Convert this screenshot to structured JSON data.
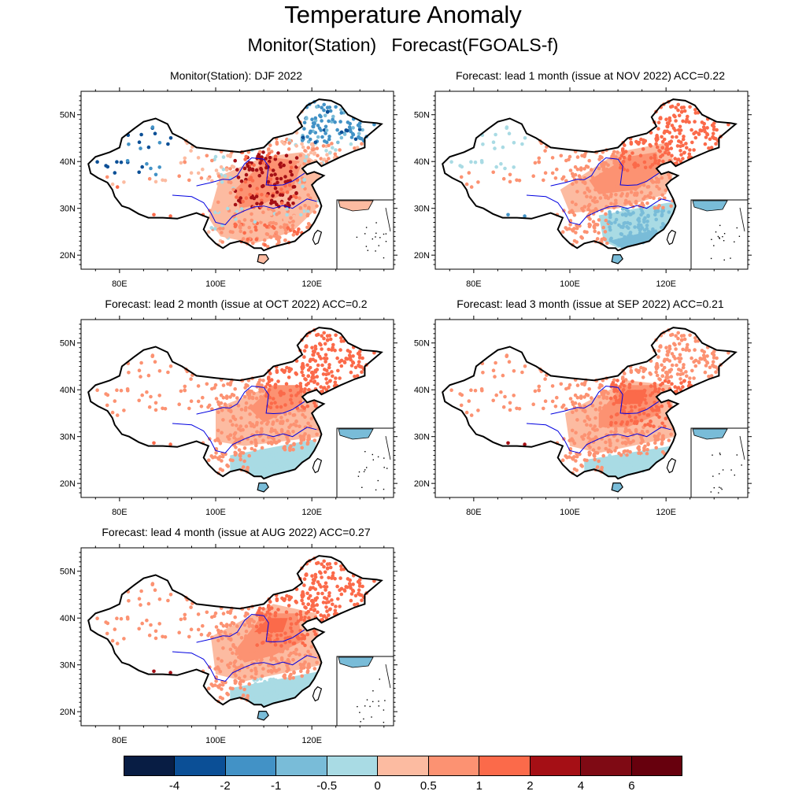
{
  "header": {
    "title": "Temperature Anomaly",
    "subtitle": "Monitor(Station)   Forecast(FGOALS-f)"
  },
  "axes": {
    "lat_labels": [
      "50N",
      "40N",
      "30N",
      "20N"
    ],
    "lon_labels": [
      "80E",
      "100E",
      "120E"
    ],
    "lat_range": [
      17,
      55
    ],
    "lon_range": [
      72,
      137
    ]
  },
  "panels": [
    {
      "title": "Monitor(Station): DJF 2022",
      "pattern": "monitor"
    },
    {
      "title": "Forecast: lead 1 month (issue at NOV 2022) ACC=0.22",
      "pattern": "lead1"
    },
    {
      "title": "Forecast: lead 2 month (issue at OCT 2022) ACC=0.2",
      "pattern": "lead2"
    },
    {
      "title": "Forecast: lead 3 month (issue at SEP 2022) ACC=0.21",
      "pattern": "lead3"
    },
    {
      "title": "Forecast: lead 4 month (issue at AUG 2022) ACC=0.27",
      "pattern": "lead4"
    }
  ],
  "colorbar": {
    "colors": [
      "#081d44",
      "#0b4f96",
      "#4292c6",
      "#79bcd8",
      "#a9dbe4",
      "#fcbba1",
      "#fc9272",
      "#fb6a4a",
      "#a50f15",
      "#7f0a14",
      "#67000d"
    ],
    "labels": [
      "-4",
      "-2",
      "-1",
      "-0.5",
      "0",
      "0.5",
      "1",
      "2",
      "4",
      "6"
    ]
  }
}
